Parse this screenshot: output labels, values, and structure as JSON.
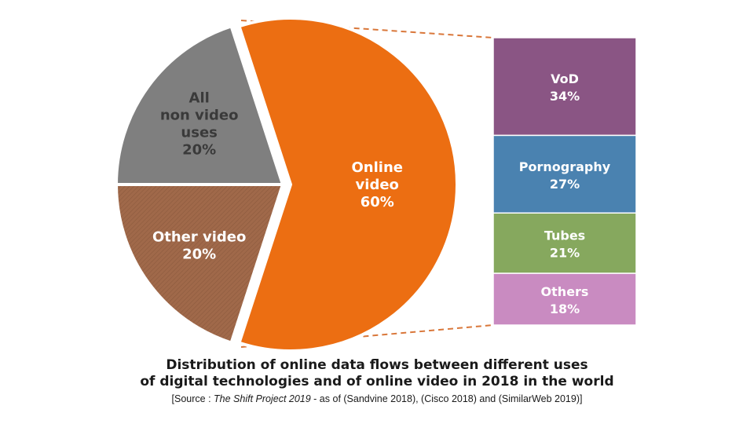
{
  "chart_data": [
    {
      "type": "pie",
      "slices": [
        {
          "label_lines": [
            "Online",
            "video",
            "60%"
          ],
          "value": 60,
          "color": "#EC6E12",
          "label_color": "#ffffff"
        },
        {
          "label_lines": [
            "Other video",
            "20%"
          ],
          "value": 20,
          "color": "#A0694A",
          "label_color": "#ffffff"
        },
        {
          "label_lines": [
            "All",
            "non video",
            "uses",
            "20%"
          ],
          "value": 20,
          "color": "#7F7F7F",
          "label_color": "#3a3a3a"
        }
      ]
    },
    {
      "type": "bar",
      "stacked": true,
      "breakdown_of": "Online video",
      "segments": [
        {
          "label": "VoD",
          "value_label": "34%",
          "value": 34,
          "color": "#8A5584"
        },
        {
          "label": "Pornography",
          "value_label": "27%",
          "value": 27,
          "color": "#4A82B0"
        },
        {
          "label": "Tubes",
          "value_label": "21%",
          "value": 21,
          "color": "#86A85E"
        },
        {
          "label": "Others",
          "value_label": "18%",
          "value": 18,
          "color": "#C98BC1"
        }
      ]
    }
  ],
  "caption": {
    "line1": "Distribution of online data flows between different uses",
    "line2": "of digital technologies and of online video in 2018 in the world",
    "source_prefix": "[Source : ",
    "source_italic": "The Shift Project 2019",
    "source_suffix": " - as of (Sandvine 2018), (Cisco 2018) and (SimilarWeb 2019)]"
  },
  "connector_color": "#D9773A"
}
